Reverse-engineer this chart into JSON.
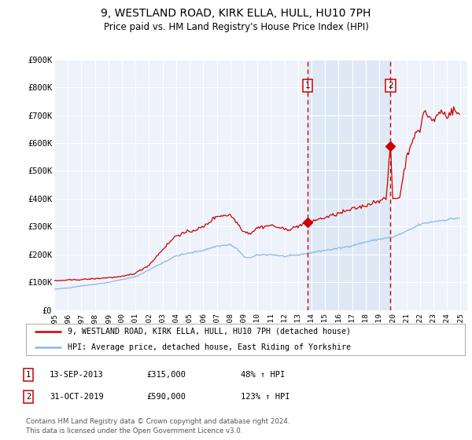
{
  "title": "9, WESTLAND ROAD, KIRK ELLA, HULL, HU10 7PH",
  "subtitle": "Price paid vs. HM Land Registry's House Price Index (HPI)",
  "title_fontsize": 10,
  "subtitle_fontsize": 8.5,
  "background_color": "#ffffff",
  "plot_bg_color": "#eef2fa",
  "grid_color": "#ffffff",
  "red_line_color": "#cc0000",
  "blue_line_color": "#88b8e8",
  "highlight_bg_color": "#dce8f5",
  "vline_color": "#cc0000",
  "marker_color": "#cc0000",
  "ylim": [
    0,
    900000
  ],
  "ytick_vals": [
    0,
    100000,
    200000,
    300000,
    400000,
    500000,
    600000,
    700000,
    800000,
    900000
  ],
  "ytick_labels": [
    "£0",
    "£100K",
    "£200K",
    "£300K",
    "£400K",
    "£500K",
    "£600K",
    "£700K",
    "£800K",
    "£900K"
  ],
  "xlim_start": 1995.0,
  "xlim_end": 2025.5,
  "sale1_date": 2013.71,
  "sale1_price": 315000,
  "sale1_label": "1",
  "sale1_date_str": "13-SEP-2013",
  "sale1_hpi": "48%",
  "sale2_date": 2019.83,
  "sale2_price": 590000,
  "sale2_label": "2",
  "sale2_date_str": "31-OCT-2019",
  "sale2_hpi": "123%",
  "legend_label_red": "9, WESTLAND ROAD, KIRK ELLA, HULL, HU10 7PH (detached house)",
  "legend_label_blue": "HPI: Average price, detached house, East Riding of Yorkshire",
  "footer_line1": "Contains HM Land Registry data © Crown copyright and database right 2024.",
  "footer_line2": "This data is licensed under the Open Government Licence v3.0.",
  "xtick_years": [
    1995,
    1996,
    1997,
    1998,
    1999,
    2000,
    2001,
    2002,
    2003,
    2004,
    2005,
    2006,
    2007,
    2008,
    2009,
    2010,
    2011,
    2012,
    2013,
    2014,
    2015,
    2016,
    2017,
    2018,
    2019,
    2020,
    2021,
    2022,
    2023,
    2024,
    2025
  ]
}
